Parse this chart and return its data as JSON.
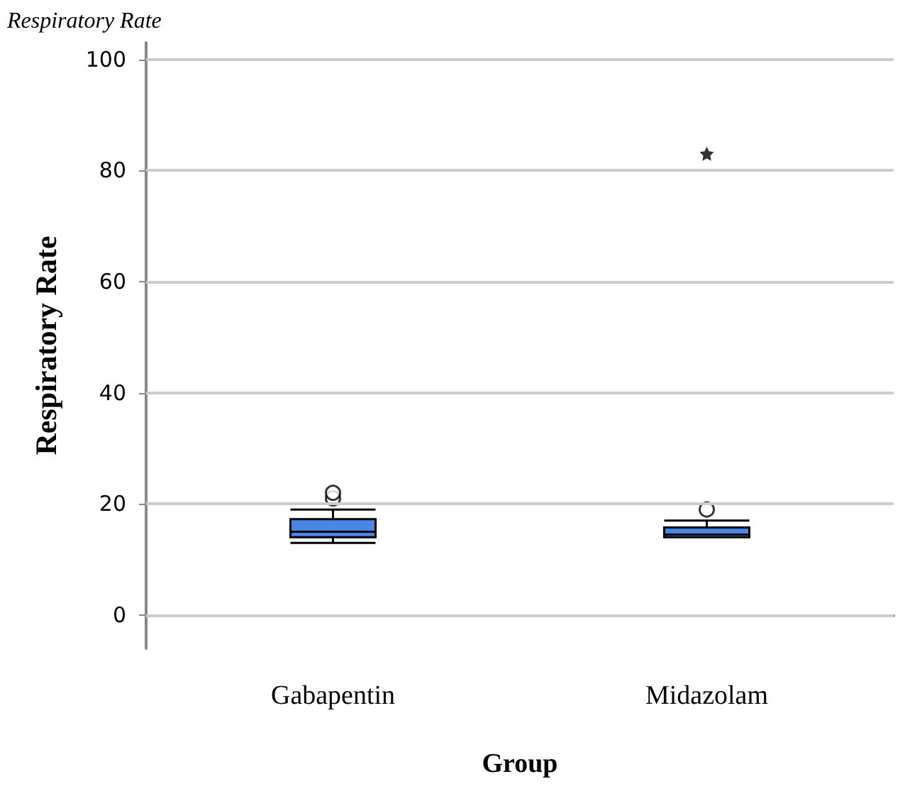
{
  "chart_data": {
    "type": "box",
    "title": "Respiratory Rate",
    "xlabel": "Group",
    "ylabel": "Respiratory Rate",
    "categories": [
      "Gabapentin",
      "Midazolam"
    ],
    "boxes": [
      {
        "low": 13,
        "q1": 14,
        "median": 15,
        "q3": 17.25,
        "high": 19,
        "outliers": [
          21,
          22
        ]
      },
      {
        "low": 14,
        "q1": 14,
        "median": 14.5,
        "q3": 15.75,
        "high": 17,
        "outliers": [
          19,
          83
        ]
      }
    ],
    "color": "#4a86e8",
    "ylim": [
      -6,
      103
    ],
    "yticks": [
      0,
      20,
      40,
      60,
      80,
      100
    ],
    "grid": "y"
  }
}
